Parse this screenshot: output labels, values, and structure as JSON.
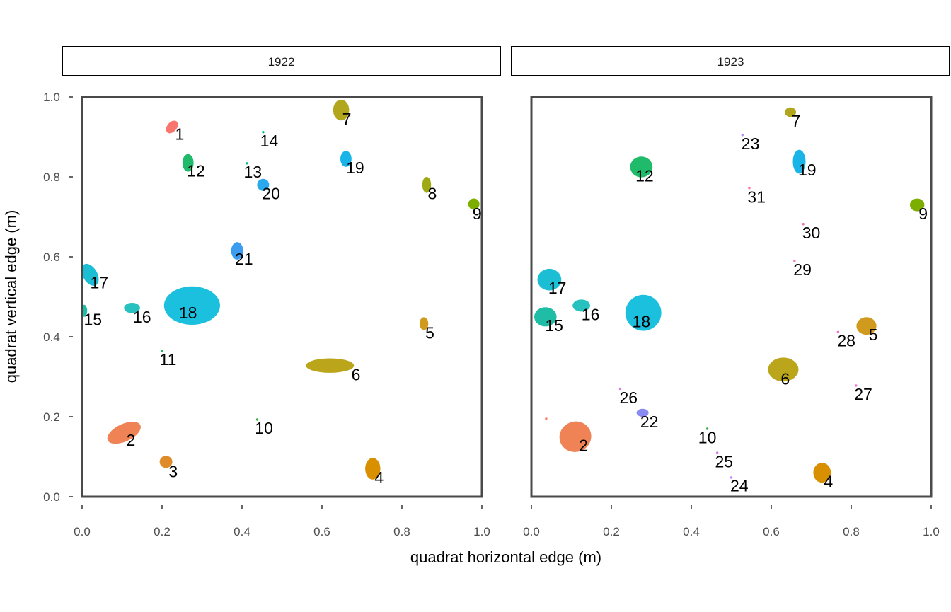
{
  "chart_data": {
    "type": "faceted-polygon-map",
    "title": "",
    "xlabel": "quadrat horizontal edge (m)",
    "ylabel": "quadrat vertical edge (m)",
    "xlim": [
      0,
      1
    ],
    "ylim": [
      0,
      1
    ],
    "xticks": [
      "0.0",
      "0.2",
      "0.4",
      "0.6",
      "0.8",
      "1.0"
    ],
    "yticks": [
      "0.0",
      "0.2",
      "0.4",
      "0.6",
      "0.8",
      "1.0"
    ],
    "legend": "none",
    "colors": {
      "1": "#F8766D",
      "2": "#EF8356",
      "3": "#E08B29",
      "4": "#D89000",
      "5": "#D09A1F",
      "6": "#BBA51A",
      "7": "#B2A61C",
      "8": "#9EAA13",
      "9": "#7CAE00",
      "10": "#3DB03F",
      "11": "#22B569",
      "12": "#1FBA6A",
      "13": "#00BA8A",
      "14": "#00BE7A",
      "15": "#1FBCA6",
      "16": "#27C2BF",
      "17": "#1CBED4",
      "18": "#1CC0DF",
      "19": "#1AB5E8",
      "20": "#2AA9EE",
      "21": "#3B9CF0",
      "22": "#8A8BF0",
      "23": "#B18CF5",
      "24": "#C77CFF",
      "25": "#D47BE8",
      "26": "#E07DE3",
      "27": "#ED72D4",
      "28": "#F46DC6",
      "29": "#F87BB8",
      "30": "#F46EB0",
      "31": "#FC71A6",
      "unlabeled": "#FB7B61"
    },
    "panels": [
      {
        "facet": "1922",
        "plants": [
          {
            "id": "1",
            "x": 0.225,
            "y": 0.925,
            "rx": 0.012,
            "ry": 0.018,
            "rot": 40,
            "lx": 0.244,
            "ly": 0.907
          },
          {
            "id": "2",
            "x": 0.105,
            "y": 0.16,
            "rx": 0.045,
            "ry": 0.022,
            "rot": -25,
            "lx": 0.122,
            "ly": 0.142
          },
          {
            "id": "3",
            "x": 0.21,
            "y": 0.087,
            "rx": 0.016,
            "ry": 0.015,
            "rot": 0,
            "lx": 0.228,
            "ly": 0.063
          },
          {
            "id": "4",
            "x": 0.727,
            "y": 0.07,
            "rx": 0.019,
            "ry": 0.027,
            "rot": 0,
            "lx": 0.743,
            "ly": 0.048
          },
          {
            "id": "5",
            "x": 0.855,
            "y": 0.433,
            "rx": 0.011,
            "ry": 0.016,
            "rot": 0,
            "lx": 0.87,
            "ly": 0.41
          },
          {
            "id": "6",
            "x": 0.62,
            "y": 0.328,
            "rx": 0.06,
            "ry": 0.018,
            "rot": 0,
            "lx": 0.685,
            "ly": 0.305
          },
          {
            "id": "7",
            "x": 0.648,
            "y": 0.967,
            "rx": 0.02,
            "ry": 0.026,
            "rot": 0,
            "lx": 0.662,
            "ly": 0.945
          },
          {
            "id": "8",
            "x": 0.862,
            "y": 0.78,
            "rx": 0.011,
            "ry": 0.02,
            "rot": 0,
            "lx": 0.876,
            "ly": 0.758
          },
          {
            "id": "9",
            "x": 0.98,
            "y": 0.732,
            "rx": 0.014,
            "ry": 0.014,
            "rot": 0,
            "lx": 0.988,
            "ly": 0.708
          },
          {
            "id": "10",
            "x": 0.438,
            "y": 0.193,
            "rx": 0.003,
            "ry": 0.003,
            "rot": 0,
            "lx": 0.455,
            "ly": 0.172
          },
          {
            "id": "11",
            "x": 0.2,
            "y": 0.365,
            "rx": 0.003,
            "ry": 0.003,
            "rot": 0,
            "lx": 0.215,
            "ly": 0.343
          },
          {
            "id": "12",
            "x": 0.265,
            "y": 0.835,
            "rx": 0.014,
            "ry": 0.022,
            "rot": 0,
            "lx": 0.285,
            "ly": 0.815
          },
          {
            "id": "13",
            "x": 0.412,
            "y": 0.834,
            "rx": 0.003,
            "ry": 0.003,
            "rot": 0,
            "lx": 0.427,
            "ly": 0.812
          },
          {
            "id": "14",
            "x": 0.453,
            "y": 0.912,
            "rx": 0.003,
            "ry": 0.003,
            "rot": 0,
            "lx": 0.468,
            "ly": 0.89
          },
          {
            "id": "15",
            "x": 0.005,
            "y": 0.465,
            "rx": 0.008,
            "ry": 0.015,
            "rot": 0,
            "lx": 0.027,
            "ly": 0.443
          },
          {
            "id": "16",
            "x": 0.125,
            "y": 0.472,
            "rx": 0.02,
            "ry": 0.013,
            "rot": 0,
            "lx": 0.15,
            "ly": 0.45
          },
          {
            "id": "17",
            "x": 0.02,
            "y": 0.555,
            "rx": 0.018,
            "ry": 0.03,
            "rot": -30,
            "lx": 0.043,
            "ly": 0.535
          },
          {
            "id": "18",
            "x": 0.275,
            "y": 0.478,
            "rx": 0.07,
            "ry": 0.048,
            "rot": 0,
            "lx": 0.265,
            "ly": 0.46
          },
          {
            "id": "19",
            "x": 0.66,
            "y": 0.845,
            "rx": 0.014,
            "ry": 0.02,
            "rot": 0,
            "lx": 0.683,
            "ly": 0.823
          },
          {
            "id": "20",
            "x": 0.453,
            "y": 0.78,
            "rx": 0.015,
            "ry": 0.015,
            "rot": 0,
            "lx": 0.473,
            "ly": 0.758
          },
          {
            "id": "21",
            "x": 0.388,
            "y": 0.615,
            "rx": 0.015,
            "ry": 0.022,
            "rot": 0,
            "lx": 0.405,
            "ly": 0.595
          }
        ]
      },
      {
        "facet": "1923",
        "plants": [
          {
            "id": "2",
            "x": 0.11,
            "y": 0.15,
            "rx": 0.04,
            "ry": 0.038,
            "rot": -20,
            "lx": 0.13,
            "ly": 0.128
          },
          {
            "id": "4",
            "x": 0.727,
            "y": 0.06,
            "rx": 0.022,
            "ry": 0.025,
            "rot": 0,
            "lx": 0.743,
            "ly": 0.038
          },
          {
            "id": "5",
            "x": 0.838,
            "y": 0.427,
            "rx": 0.025,
            "ry": 0.022,
            "rot": 0,
            "lx": 0.855,
            "ly": 0.405
          },
          {
            "id": "6",
            "x": 0.63,
            "y": 0.318,
            "rx": 0.038,
            "ry": 0.03,
            "rot": 0,
            "lx": 0.635,
            "ly": 0.295
          },
          {
            "id": "7",
            "x": 0.648,
            "y": 0.962,
            "rx": 0.014,
            "ry": 0.012,
            "rot": 0,
            "lx": 0.662,
            "ly": 0.94
          },
          {
            "id": "9",
            "x": 0.965,
            "y": 0.73,
            "rx": 0.018,
            "ry": 0.016,
            "rot": 0,
            "lx": 0.98,
            "ly": 0.708
          },
          {
            "id": "10",
            "x": 0.44,
            "y": 0.17,
            "rx": 0.003,
            "ry": 0.003,
            "rot": 0,
            "lx": 0.44,
            "ly": 0.148
          },
          {
            "id": "12",
            "x": 0.275,
            "y": 0.825,
            "rx": 0.028,
            "ry": 0.026,
            "rot": 0,
            "lx": 0.283,
            "ly": 0.803
          },
          {
            "id": "15",
            "x": 0.035,
            "y": 0.45,
            "rx": 0.028,
            "ry": 0.024,
            "rot": 0,
            "lx": 0.057,
            "ly": 0.428
          },
          {
            "id": "16",
            "x": 0.125,
            "y": 0.478,
            "rx": 0.022,
            "ry": 0.015,
            "rot": 0,
            "lx": 0.148,
            "ly": 0.456
          },
          {
            "id": "17",
            "x": 0.045,
            "y": 0.543,
            "rx": 0.03,
            "ry": 0.027,
            "rot": 0,
            "lx": 0.065,
            "ly": 0.522
          },
          {
            "id": "18",
            "x": 0.28,
            "y": 0.46,
            "rx": 0.045,
            "ry": 0.045,
            "rot": 0,
            "lx": 0.275,
            "ly": 0.438
          },
          {
            "id": "19",
            "x": 0.67,
            "y": 0.838,
            "rx": 0.016,
            "ry": 0.03,
            "rot": 0,
            "lx": 0.69,
            "ly": 0.818
          },
          {
            "id": "22",
            "x": 0.278,
            "y": 0.21,
            "rx": 0.015,
            "ry": 0.01,
            "rot": 0,
            "lx": 0.295,
            "ly": 0.188
          },
          {
            "id": "23",
            "x": 0.528,
            "y": 0.905,
            "rx": 0.003,
            "ry": 0.003,
            "rot": 0,
            "lx": 0.548,
            "ly": 0.883
          },
          {
            "id": "24",
            "x": 0.5,
            "y": 0.048,
            "rx": 0.003,
            "ry": 0.003,
            "rot": 0,
            "lx": 0.52,
            "ly": 0.027
          },
          {
            "id": "25",
            "x": 0.465,
            "y": 0.11,
            "rx": 0.003,
            "ry": 0.003,
            "rot": 0,
            "lx": 0.482,
            "ly": 0.088
          },
          {
            "id": "26",
            "x": 0.222,
            "y": 0.27,
            "rx": 0.003,
            "ry": 0.003,
            "rot": 0,
            "lx": 0.243,
            "ly": 0.248
          },
          {
            "id": "27",
            "x": 0.812,
            "y": 0.278,
            "rx": 0.003,
            "ry": 0.003,
            "rot": 0,
            "lx": 0.83,
            "ly": 0.257
          },
          {
            "id": "28",
            "x": 0.767,
            "y": 0.412,
            "rx": 0.003,
            "ry": 0.003,
            "rot": 0,
            "lx": 0.788,
            "ly": 0.39
          },
          {
            "id": "29",
            "x": 0.658,
            "y": 0.59,
            "rx": 0.003,
            "ry": 0.003,
            "rot": 0,
            "lx": 0.678,
            "ly": 0.568
          },
          {
            "id": "30",
            "x": 0.68,
            "y": 0.682,
            "rx": 0.003,
            "ry": 0.003,
            "rot": 0,
            "lx": 0.7,
            "ly": 0.66
          },
          {
            "id": "31",
            "x": 0.545,
            "y": 0.772,
            "rx": 0.003,
            "ry": 0.003,
            "rot": 0,
            "lx": 0.563,
            "ly": 0.75
          },
          {
            "id": "unlabeled",
            "label": "",
            "x": 0.037,
            "y": 0.195,
            "rx": 0.003,
            "ry": 0.003,
            "rot": 0,
            "lx": 0.037,
            "ly": 0.195
          }
        ]
      }
    ]
  }
}
